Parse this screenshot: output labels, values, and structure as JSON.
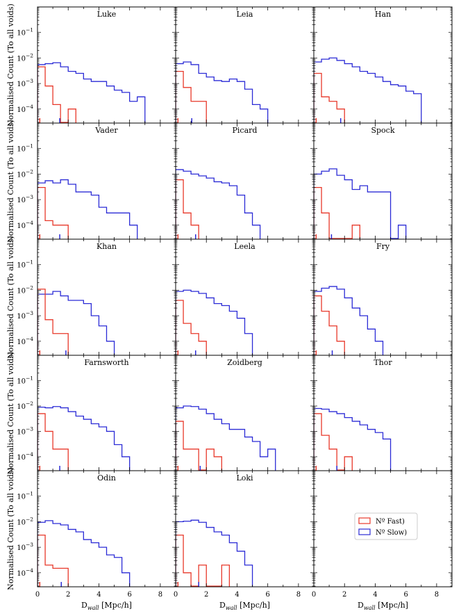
{
  "chart_data": {
    "type": "histogram-grid",
    "ylabel": "Normalised Count (To all voids)",
    "xlabel": "D_wall [Mpc/h]",
    "xlabel_parts": {
      "base": "D",
      "sub": "wall",
      "unit": " [Mpc/h]"
    },
    "xlim": [
      0,
      9
    ],
    "ylim_log10": [
      -4.55,
      0
    ],
    "y_scale": "log",
    "xticks": [
      0,
      2,
      4,
      6,
      8
    ],
    "yticks": [
      {
        "exp": -1,
        "label": "10",
        "sup": "−1"
      },
      {
        "exp": -2,
        "label": "10",
        "sup": "−2"
      },
      {
        "exp": -3,
        "label": "10",
        "sup": "−3"
      },
      {
        "exp": -4,
        "label": "10",
        "sup": "−4"
      }
    ],
    "bin_width": 0.5,
    "colors": {
      "fast": "#e8382a",
      "slow": "#2b2bd6"
    },
    "legend": {
      "placement": "center of last panel",
      "fast": "Nº Fast)",
      "slow": "Nº Slow)"
    },
    "panels": [
      {
        "name": "Luke",
        "fast": [
          0.0045,
          0.0008,
          0.00015,
          3e-05,
          0.0001
        ],
        "slow": [
          0.0055,
          0.006,
          0.0065,
          0.0045,
          0.003,
          0.0025,
          0.0015,
          0.0012,
          0.0012,
          0.0008,
          0.00055,
          0.00045,
          0.0002,
          0.0003
        ],
        "fast_median": 0.15,
        "slow_median": 1.45
      },
      {
        "name": "Leia",
        "fast": [
          0.003,
          0.0007,
          0.0002,
          0.0002
        ],
        "slow": [
          0.006,
          0.007,
          0.0055,
          0.0025,
          0.0018,
          0.0013,
          0.0012,
          0.0015,
          0.0012,
          0.0006,
          0.00015,
          0.0001
        ],
        "fast_median": 0.15,
        "slow_median": 1.05
      },
      {
        "name": "Han",
        "fast": [
          0.0025,
          0.0003,
          0.0002,
          0.0001
        ],
        "slow": [
          0.007,
          0.009,
          0.01,
          0.008,
          0.006,
          0.0045,
          0.003,
          0.0025,
          0.0018,
          0.0012,
          0.0009,
          0.0008,
          0.0005,
          0.0004
        ],
        "fast_median": 0.15,
        "slow_median": 1.75
      },
      {
        "name": "Vader",
        "fast": [
          0.003,
          0.00015,
          0.0001,
          0.0001
        ],
        "slow": [
          0.0045,
          0.0055,
          0.0045,
          0.006,
          0.004,
          0.002,
          0.002,
          0.0015,
          0.0005,
          0.0003,
          0.0003,
          0.0003,
          0.0001
        ],
        "fast_median": 0.15,
        "slow_median": 1.45
      },
      {
        "name": "Picard",
        "fast": [
          0.006,
          0.0003,
          0.0001
        ],
        "slow": [
          0.015,
          0.013,
          0.01,
          0.0085,
          0.007,
          0.005,
          0.0045,
          0.0035,
          0.0015,
          0.0003,
          0.0001
        ],
        "fast_median": 0.15,
        "slow_median": 1.3
      },
      {
        "name": "Spock",
        "fast": [
          0.003,
          0.0003,
          3e-05,
          3e-05,
          3e-05,
          0.0001
        ],
        "slow": [
          0.01,
          0.013,
          0.016,
          0.009,
          0.006,
          0.0025,
          0.0035,
          0.002,
          0.002,
          0.002,
          3e-05,
          0.0001
        ],
        "fast_median": 0.15,
        "slow_median": 1.15
      },
      {
        "name": "Khan",
        "fast": [
          0.011,
          0.0007,
          0.0002,
          0.0002
        ],
        "slow": [
          0.007,
          0.007,
          0.009,
          0.006,
          0.004,
          0.004,
          0.003,
          0.001,
          0.0004,
          0.0001
        ],
        "fast_median": 0.15,
        "slow_median": 1.85
      },
      {
        "name": "Leela",
        "fast": [
          0.004,
          0.0005,
          0.0002,
          0.0001
        ],
        "slow": [
          0.009,
          0.01,
          0.009,
          0.0075,
          0.005,
          0.003,
          0.0025,
          0.0015,
          0.0008,
          0.0002
        ],
        "fast_median": 0.15,
        "slow_median": 1.3
      },
      {
        "name": "Fry",
        "fast": [
          0.006,
          0.0015,
          0.0004,
          0.0001
        ],
        "slow": [
          0.009,
          0.012,
          0.014,
          0.011,
          0.005,
          0.002,
          0.001,
          0.0003,
          0.0001
        ],
        "fast_median": 0.15,
        "slow_median": 1.2
      },
      {
        "name": "Farnsworth",
        "fast": [
          0.005,
          0.001,
          0.0002,
          0.0002
        ],
        "slow": [
          0.009,
          0.0085,
          0.0095,
          0.0085,
          0.006,
          0.004,
          0.003,
          0.002,
          0.0015,
          0.001,
          0.0003,
          0.0001
        ],
        "fast_median": 0.15,
        "slow_median": 1.45
      },
      {
        "name": "Zoidberg",
        "fast": [
          0.0025,
          0.0002,
          0.0002,
          3e-05,
          0.0002,
          0.0001
        ],
        "slow": [
          0.0085,
          0.01,
          0.0095,
          0.0075,
          0.005,
          0.003,
          0.002,
          0.0012,
          0.0012,
          0.0006,
          0.0004,
          0.0001,
          0.0002
        ],
        "fast_median": 0.15,
        "slow_median": 1.6
      },
      {
        "name": "Thor",
        "fast": [
          0.005,
          0.0007,
          0.0002,
          3e-05,
          0.0001
        ],
        "slow": [
          0.008,
          0.0075,
          0.006,
          0.005,
          0.0035,
          0.0025,
          0.0018,
          0.0012,
          0.0009,
          0.0005
        ],
        "fast_median": 0.15,
        "slow_median": 1.5
      },
      {
        "name": "Odin",
        "fast": [
          0.003,
          0.0002,
          0.00015,
          0.00015
        ],
        "slow": [
          0.0095,
          0.011,
          0.0085,
          0.0075,
          0.005,
          0.004,
          0.002,
          0.0015,
          0.001,
          0.0005,
          0.0004,
          0.0001
        ],
        "fast_median": 0.15,
        "slow_median": 1.55
      },
      {
        "name": "Loki",
        "fast": [
          0.003,
          0.0001,
          3e-05,
          0.0002,
          3e-05,
          3e-05,
          0.0002
        ],
        "slow": [
          0.01,
          0.0105,
          0.0115,
          0.0095,
          0.006,
          0.004,
          0.003,
          0.0015,
          0.0007,
          0.0002
        ],
        "fast_median": 0.15,
        "slow_median": 1.5
      },
      {
        "name": "",
        "empty": true
      }
    ]
  }
}
